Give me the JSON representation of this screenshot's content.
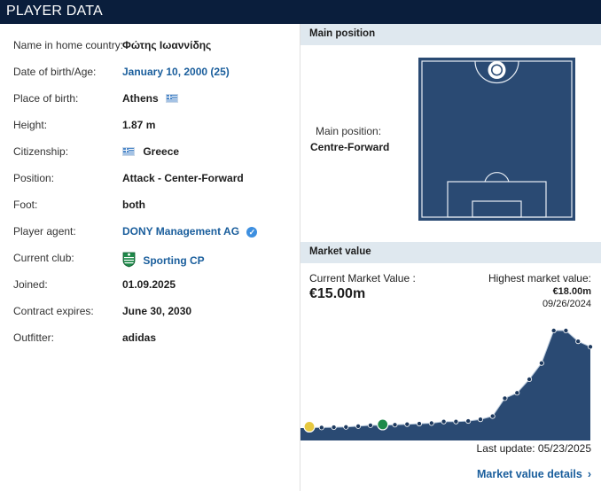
{
  "header": {
    "title": "PLAYER DATA"
  },
  "player": {
    "rows": [
      {
        "label": "Name in home country:",
        "value": "Φώτης Ιωαννίδης"
      },
      {
        "label": "Date of birth/Age:",
        "value": "January 10, 2000 (25)"
      },
      {
        "label": "Place of birth:",
        "value": "Athens"
      },
      {
        "label": "Height:",
        "value": "1.87 m"
      },
      {
        "label": "Citizenship:",
        "value": "Greece"
      },
      {
        "label": "Position:",
        "value": "Attack - Center-Forward"
      },
      {
        "label": "Foot:",
        "value": "both"
      },
      {
        "label": "Player agent:",
        "value": "DONY Management AG"
      },
      {
        "label": "Current club:",
        "value": "Sporting CP"
      },
      {
        "label": "Joined:",
        "value": "01.09.2025"
      },
      {
        "label": "Contract expires:",
        "value": "June 30, 2030"
      },
      {
        "label": "Outfitter:",
        "value": "adidas"
      }
    ]
  },
  "position_section": {
    "title": "Main position",
    "label": "Main position:",
    "value": "Centre-Forward"
  },
  "market_section": {
    "title": "Market value",
    "current_label": "Current Market Value :",
    "current_value": "€15.00m",
    "highest_label": "Highest market value:",
    "highest_value": "€18.00m",
    "highest_date": "09/26/2024",
    "last_update": "Last update: 05/23/2025",
    "details_link": "Market value details"
  },
  "colors": {
    "header_bg": "#0a1e3c",
    "link": "#1a5e9c",
    "section_bg": "#dfe8ef",
    "pitch": "#2a4a73",
    "chart_fill": "#2a4a73"
  },
  "chart_data": {
    "type": "area",
    "series": [
      {
        "values": [
          0.1,
          0.1,
          0.15,
          0.2,
          0.35,
          0.5,
          0.5,
          0.6,
          0.7,
          0.8,
          0.9,
          1.2,
          1.2,
          1.3,
          1.6,
          2.2,
          5.5,
          6.5,
          9.0,
          12.0,
          18.0,
          18.0,
          16.0,
          15.0
        ]
      }
    ],
    "ylim": [
      0,
      18
    ],
    "grid": false
  }
}
